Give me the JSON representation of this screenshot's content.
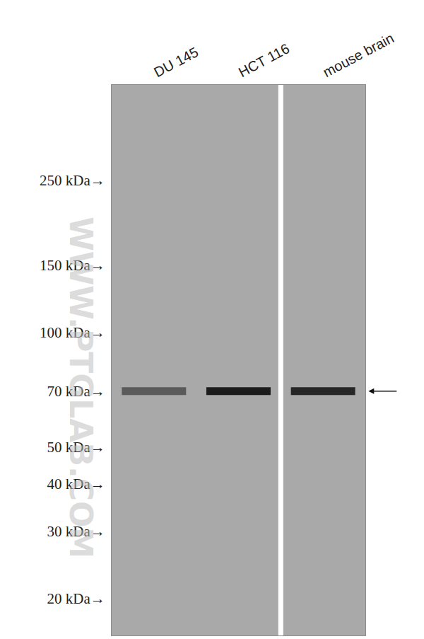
{
  "chart_data": {
    "type": "western_blot",
    "lanes": [
      "DU 145",
      "HCT 116",
      "mouse brain"
    ],
    "bands": [
      {
        "lane": "DU 145",
        "kDa": 70,
        "color": "#5a5a5a"
      },
      {
        "lane": "HCT 116",
        "kDa": 70,
        "color": "#1c1c1c"
      },
      {
        "lane": "mouse brain",
        "kDa": 70,
        "color": "#262626"
      }
    ],
    "ylim": [
      16,
      445
    ],
    "yticks": [
      {
        "value": 250,
        "label": "250 kDa→"
      },
      {
        "value": 150,
        "label": "150 kDa→"
      },
      {
        "value": 100,
        "label": "100 kDa→"
      },
      {
        "value": 70,
        "label": "70 kDa→"
      },
      {
        "value": 50,
        "label": "50 kDa→"
      },
      {
        "value": 40,
        "label": "40 kDa→"
      },
      {
        "value": 30,
        "label": "30 kDa→"
      },
      {
        "value": 20,
        "label": "20 kDa→"
      }
    ],
    "log": "y",
    "arrow_at": 70,
    "watermark": "WWW.PTGLAB.COM"
  }
}
